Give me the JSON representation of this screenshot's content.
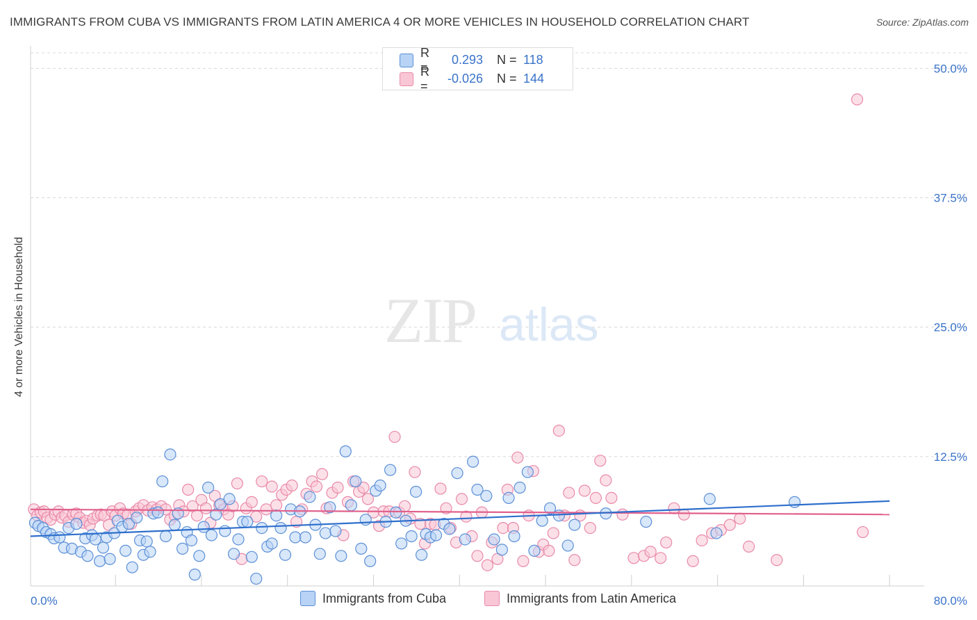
{
  "title": "IMMIGRANTS FROM CUBA VS IMMIGRANTS FROM LATIN AMERICA 4 OR MORE VEHICLES IN HOUSEHOLD CORRELATION CHART",
  "source": "Source: ZipAtlas.com",
  "watermark": {
    "zip": "ZIP",
    "atlas": "atlas"
  },
  "colors": {
    "cuba_fill": "#b8d3f5",
    "cuba_stroke": "#5b8fd6",
    "cuba_line": "#2e6fcc",
    "latin_fill": "#f9c6d6",
    "latin_stroke": "#e889a9",
    "latin_line": "#e0608c",
    "tick_label": "#3a73c9",
    "grid": "#d8d8d8"
  },
  "legend_top": [
    {
      "r_label": "R =",
      "r_value": "0.293",
      "n_label": "N =",
      "n_value": "118"
    },
    {
      "r_label": "R =",
      "r_value": "-0.026",
      "n_label": "N =",
      "n_value": "144"
    }
  ],
  "chart_data": {
    "type": "scatter",
    "title": "IMMIGRANTS FROM CUBA VS IMMIGRANTS FROM LATIN AMERICA 4 OR MORE VEHICLES IN HOUSEHOLD CORRELATION CHART",
    "xlabel": "",
    "ylabel": "4 or more Vehicles in Household",
    "xlim": [
      0,
      80
    ],
    "ylim": [
      0,
      51.5
    ],
    "x_tick_labels": [
      "0.0%",
      "80.0%"
    ],
    "y_ticks": [
      12.5,
      25.0,
      37.5,
      50.0
    ],
    "y_tick_labels": [
      "12.5%",
      "25.0%",
      "37.5%",
      "50.0%"
    ],
    "x_minor_ticks": [
      0,
      7.6,
      15.3,
      23.0,
      30.7,
      38.4,
      46.1,
      53.8,
      61.5,
      69.2,
      76.9
    ],
    "grid": true,
    "legend": "bottom-center",
    "series": [
      {
        "name": "Immigrants from Cuba",
        "r": 0.293,
        "n": 118,
        "trend": [
          [
            0,
            4.8
          ],
          [
            76.9,
            8.2
          ]
        ],
        "points": [
          [
            0.4,
            6.1
          ],
          [
            0.7,
            5.8
          ],
          [
            1.1,
            5.6
          ],
          [
            1.4,
            5.2
          ],
          [
            1.8,
            5.0
          ],
          [
            2.1,
            4.6
          ],
          [
            2.6,
            4.7
          ],
          [
            3.0,
            3.7
          ],
          [
            3.4,
            5.6
          ],
          [
            3.7,
            3.6
          ],
          [
            4.1,
            6.0
          ],
          [
            4.5,
            3.3
          ],
          [
            4.9,
            4.6
          ],
          [
            5.1,
            2.9
          ],
          [
            5.5,
            4.9
          ],
          [
            5.8,
            4.5
          ],
          [
            6.2,
            2.4
          ],
          [
            6.5,
            3.7
          ],
          [
            6.8,
            4.7
          ],
          [
            7.1,
            2.6
          ],
          [
            7.5,
            5.1
          ],
          [
            7.8,
            6.3
          ],
          [
            8.2,
            5.7
          ],
          [
            8.5,
            3.4
          ],
          [
            8.8,
            6.0
          ],
          [
            9.1,
            1.8
          ],
          [
            9.5,
            6.6
          ],
          [
            9.8,
            4.4
          ],
          [
            10.1,
            3.0
          ],
          [
            10.4,
            4.3
          ],
          [
            10.7,
            3.3
          ],
          [
            11.0,
            7.0
          ],
          [
            11.4,
            7.1
          ],
          [
            11.8,
            10.1
          ],
          [
            12.1,
            4.8
          ],
          [
            12.5,
            12.7
          ],
          [
            12.9,
            5.9
          ],
          [
            13.2,
            7.0
          ],
          [
            13.6,
            3.6
          ],
          [
            14.0,
            5.2
          ],
          [
            14.4,
            4.4
          ],
          [
            14.7,
            1.1
          ],
          [
            15.1,
            2.9
          ],
          [
            15.5,
            5.7
          ],
          [
            15.9,
            9.5
          ],
          [
            16.2,
            4.9
          ],
          [
            16.6,
            6.9
          ],
          [
            17.0,
            7.9
          ],
          [
            17.4,
            5.3
          ],
          [
            17.8,
            8.4
          ],
          [
            18.2,
            3.1
          ],
          [
            18.6,
            4.5
          ],
          [
            19.0,
            6.2
          ],
          [
            19.4,
            6.2
          ],
          [
            19.8,
            2.8
          ],
          [
            20.2,
            0.7
          ],
          [
            20.7,
            5.6
          ],
          [
            21.2,
            3.8
          ],
          [
            21.6,
            4.1
          ],
          [
            22.0,
            6.8
          ],
          [
            22.4,
            5.6
          ],
          [
            22.8,
            3.0
          ],
          [
            23.3,
            7.4
          ],
          [
            23.7,
            4.7
          ],
          [
            24.1,
            7.2
          ],
          [
            24.6,
            4.7
          ],
          [
            25.0,
            8.6
          ],
          [
            25.5,
            5.9
          ],
          [
            25.9,
            3.1
          ],
          [
            26.4,
            5.1
          ],
          [
            26.8,
            7.6
          ],
          [
            27.3,
            5.3
          ],
          [
            27.8,
            2.9
          ],
          [
            28.2,
            13.0
          ],
          [
            28.7,
            7.8
          ],
          [
            29.1,
            10.1
          ],
          [
            29.6,
            3.6
          ],
          [
            30.0,
            6.4
          ],
          [
            30.4,
            2.4
          ],
          [
            30.9,
            9.2
          ],
          [
            31.3,
            9.7
          ],
          [
            31.8,
            6.2
          ],
          [
            32.2,
            11.2
          ],
          [
            32.7,
            7.1
          ],
          [
            33.2,
            4.1
          ],
          [
            33.6,
            6.3
          ],
          [
            34.1,
            4.8
          ],
          [
            34.5,
            9.1
          ],
          [
            35.0,
            3.0
          ],
          [
            35.4,
            5.0
          ],
          [
            35.8,
            4.7
          ],
          [
            36.3,
            4.9
          ],
          [
            37.0,
            6.0
          ],
          [
            37.5,
            5.5
          ],
          [
            38.2,
            10.9
          ],
          [
            38.9,
            4.5
          ],
          [
            39.6,
            12.0
          ],
          [
            40.0,
            9.3
          ],
          [
            40.8,
            8.7
          ],
          [
            41.5,
            4.5
          ],
          [
            42.2,
            3.5
          ],
          [
            42.8,
            8.5
          ],
          [
            43.3,
            4.8
          ],
          [
            43.8,
            9.5
          ],
          [
            44.5,
            11.0
          ],
          [
            45.1,
            3.4
          ],
          [
            45.8,
            6.3
          ],
          [
            46.5,
            7.5
          ],
          [
            47.3,
            6.8
          ],
          [
            48.1,
            3.9
          ],
          [
            48.7,
            5.9
          ],
          [
            51.5,
            7.0
          ],
          [
            55.1,
            6.2
          ],
          [
            60.8,
            8.4
          ],
          [
            61.4,
            5.1
          ],
          [
            68.4,
            8.1
          ]
        ]
      },
      {
        "name": "Immigrants from Latin America",
        "r": -0.026,
        "n": 144,
        "trend": [
          [
            0,
            7.4
          ],
          [
            76.9,
            6.9
          ]
        ],
        "points": [
          [
            0.3,
            7.4
          ],
          [
            0.6,
            6.8
          ],
          [
            0.9,
            7.1
          ],
          [
            1.2,
            7.2
          ],
          [
            1.5,
            6.6
          ],
          [
            1.8,
            6.4
          ],
          [
            2.2,
            6.9
          ],
          [
            2.5,
            7.2
          ],
          [
            2.8,
            6.6
          ],
          [
            3.1,
            6.8
          ],
          [
            3.4,
            6.2
          ],
          [
            3.8,
            6.9
          ],
          [
            4.1,
            7.0
          ],
          [
            4.4,
            6.6
          ],
          [
            4.7,
            6.1
          ],
          [
            5.0,
            6.3
          ],
          [
            5.3,
            5.9
          ],
          [
            5.6,
            6.5
          ],
          [
            6.0,
            6.8
          ],
          [
            6.3,
            6.9
          ],
          [
            6.6,
            6.8
          ],
          [
            7.0,
            5.9
          ],
          [
            7.3,
            7.2
          ],
          [
            7.6,
            6.8
          ],
          [
            8.0,
            7.5
          ],
          [
            8.3,
            7.0
          ],
          [
            8.7,
            6.9
          ],
          [
            9.0,
            6.0
          ],
          [
            9.4,
            7.2
          ],
          [
            9.7,
            7.5
          ],
          [
            10.1,
            7.8
          ],
          [
            10.5,
            7.3
          ],
          [
            10.9,
            7.6
          ],
          [
            11.3,
            7.4
          ],
          [
            11.7,
            7.7
          ],
          [
            12.1,
            7.4
          ],
          [
            12.5,
            6.4
          ],
          [
            12.9,
            6.8
          ],
          [
            13.3,
            7.8
          ],
          [
            13.7,
            7.2
          ],
          [
            14.1,
            9.3
          ],
          [
            14.5,
            7.7
          ],
          [
            14.9,
            6.8
          ],
          [
            15.3,
            8.3
          ],
          [
            15.7,
            7.5
          ],
          [
            16.1,
            6.1
          ],
          [
            16.5,
            8.7
          ],
          [
            16.9,
            7.8
          ],
          [
            17.3,
            7.4
          ],
          [
            17.7,
            6.9
          ],
          [
            18.1,
            7.7
          ],
          [
            18.5,
            9.9
          ],
          [
            18.9,
            2.6
          ],
          [
            19.3,
            7.5
          ],
          [
            19.8,
            8.1
          ],
          [
            20.2,
            6.7
          ],
          [
            20.7,
            10.1
          ],
          [
            21.1,
            7.4
          ],
          [
            21.6,
            9.6
          ],
          [
            22.0,
            7.8
          ],
          [
            22.5,
            8.8
          ],
          [
            22.9,
            9.3
          ],
          [
            23.4,
            9.7
          ],
          [
            23.8,
            6.2
          ],
          [
            24.3,
            7.4
          ],
          [
            24.7,
            8.9
          ],
          [
            25.2,
            10.1
          ],
          [
            25.6,
            9.6
          ],
          [
            26.1,
            10.8
          ],
          [
            26.5,
            7.5
          ],
          [
            27.0,
            9.0
          ],
          [
            27.5,
            9.5
          ],
          [
            28.0,
            4.9
          ],
          [
            28.4,
            8.1
          ],
          [
            28.9,
            10.1
          ],
          [
            29.4,
            9.1
          ],
          [
            29.8,
            9.5
          ],
          [
            30.2,
            8.4
          ],
          [
            30.7,
            7.1
          ],
          [
            31.2,
            5.8
          ],
          [
            31.6,
            7.2
          ],
          [
            32.1,
            7.2
          ],
          [
            32.6,
            14.4
          ],
          [
            33.0,
            7.1
          ],
          [
            33.5,
            7.7
          ],
          [
            34.0,
            6.5
          ],
          [
            34.4,
            11.0
          ],
          [
            34.9,
            6.0
          ],
          [
            35.3,
            4.1
          ],
          [
            35.8,
            6.0
          ],
          [
            36.2,
            5.9
          ],
          [
            36.7,
            9.4
          ],
          [
            37.2,
            7.5
          ],
          [
            37.6,
            5.6
          ],
          [
            38.1,
            4.2
          ],
          [
            38.6,
            8.4
          ],
          [
            39.0,
            6.7
          ],
          [
            39.5,
            4.8
          ],
          [
            40.0,
            2.9
          ],
          [
            40.4,
            7.1
          ],
          [
            40.9,
            2.0
          ],
          [
            41.3,
            4.2
          ],
          [
            41.8,
            2.6
          ],
          [
            42.3,
            5.6
          ],
          [
            42.7,
            9.3
          ],
          [
            43.2,
            5.6
          ],
          [
            43.6,
            12.4
          ],
          [
            44.1,
            2.4
          ],
          [
            44.6,
            6.8
          ],
          [
            45.0,
            11.1
          ],
          [
            45.5,
            3.3
          ],
          [
            45.9,
            4.0
          ],
          [
            46.4,
            3.4
          ],
          [
            46.8,
            5.1
          ],
          [
            47.3,
            15.0
          ],
          [
            47.8,
            6.8
          ],
          [
            48.2,
            9.0
          ],
          [
            48.7,
            2.5
          ],
          [
            49.2,
            6.8
          ],
          [
            49.6,
            9.2
          ],
          [
            50.1,
            5.6
          ],
          [
            50.6,
            8.5
          ],
          [
            51.0,
            12.1
          ],
          [
            51.5,
            10.2
          ],
          [
            52.0,
            8.5
          ],
          [
            53.0,
            6.9
          ],
          [
            54.0,
            2.7
          ],
          [
            54.9,
            2.9
          ],
          [
            55.5,
            3.3
          ],
          [
            56.4,
            2.7
          ],
          [
            56.9,
            4.2
          ],
          [
            57.6,
            7.5
          ],
          [
            58.5,
            6.9
          ],
          [
            59.3,
            2.4
          ],
          [
            60.1,
            4.4
          ],
          [
            61.0,
            5.1
          ],
          [
            61.8,
            5.4
          ],
          [
            62.6,
            5.9
          ],
          [
            63.5,
            6.5
          ],
          [
            64.3,
            3.8
          ],
          [
            66.8,
            2.5
          ],
          [
            74.0,
            47.0
          ],
          [
            74.5,
            5.2
          ]
        ]
      }
    ]
  },
  "legend_bottom": [
    {
      "label": "Immigrants from Cuba"
    },
    {
      "label": "Immigrants from Latin America"
    }
  ]
}
